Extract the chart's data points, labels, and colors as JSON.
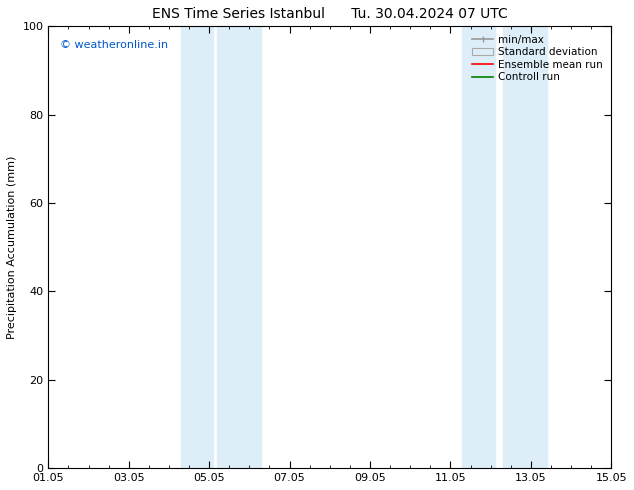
{
  "title": "ENS Time Series Istanbul      Tu. 30.04.2024 07 UTC",
  "ylabel": "Precipitation Accumulation (mm)",
  "xlabel": "",
  "ylim": [
    0,
    100
  ],
  "yticks": [
    0,
    20,
    40,
    60,
    80,
    100
  ],
  "xtick_labels": [
    "01.05",
    "03.05",
    "05.05",
    "07.05",
    "09.05",
    "11.05",
    "13.05",
    "15.05"
  ],
  "xmin": 0,
  "xmax": 14,
  "shaded_regions": [
    {
      "xmin": 3.3,
      "xmax": 4.1,
      "color": "#ddeef8"
    },
    {
      "xmin": 4.2,
      "xmax": 5.3,
      "color": "#ddeef8"
    },
    {
      "xmin": 10.3,
      "xmax": 11.1,
      "color": "#ddeef8"
    },
    {
      "xmin": 11.3,
      "xmax": 12.4,
      "color": "#ddeef8"
    }
  ],
  "watermark_text": "© weatheronline.in",
  "watermark_color": "#0055cc",
  "watermark_fontsize": 8,
  "legend_entries": [
    {
      "label": "min/max",
      "color": "#999999",
      "lw": 1.2
    },
    {
      "label": "Standard deviation",
      "facecolor": "#ddeef8",
      "edgecolor": "#aaaaaa"
    },
    {
      "label": "Ensemble mean run",
      "color": "red",
      "lw": 1.2
    },
    {
      "label": "Controll run",
      "color": "green",
      "lw": 1.2
    }
  ],
  "background_color": "#ffffff",
  "title_fontsize": 10,
  "axis_fontsize": 8,
  "tick_fontsize": 8,
  "legend_fontsize": 7.5
}
